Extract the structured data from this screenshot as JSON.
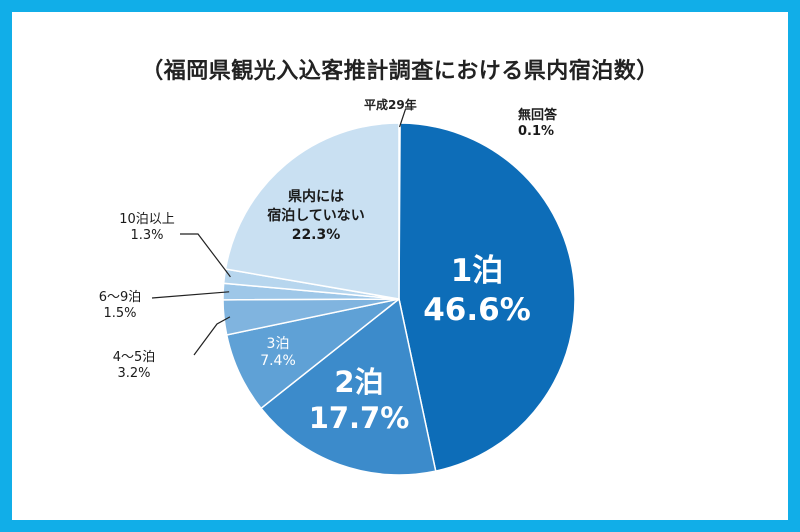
{
  "title": "（福岡県観光入込客推計調査における県内宿泊数）",
  "subtitle": "平成29年",
  "colors": {
    "frame": "#11aee8",
    "slice_1": "#0d6db8",
    "slice_2": "#3c8bcb",
    "slice_3": "#5fa1d6",
    "slice_4": "#80b4df",
    "slice_5": "#9ec7e8",
    "slice_6": "#b7d6ee",
    "slice_none": "#c9e0f2",
    "slice_noans": "#6fa8da"
  },
  "chart_data": {
    "type": "pie",
    "title": "（福岡県観光入込客推計調査における県内宿泊数）",
    "subtitle": "平成29年",
    "start": "12 o'clock",
    "direction": "clockwise",
    "slices": [
      {
        "label": "無回答",
        "value": 0.1,
        "text": "0.1%"
      },
      {
        "label": "1泊",
        "value": 46.6,
        "text": "46.6%"
      },
      {
        "label": "2泊",
        "value": 17.7,
        "text": "17.7%"
      },
      {
        "label": "3泊",
        "value": 7.4,
        "text": "7.4%"
      },
      {
        "label": "4〜5泊",
        "value": 3.2,
        "text": "3.2%"
      },
      {
        "label": "6〜9泊",
        "value": 1.5,
        "text": "1.5%"
      },
      {
        "label": "10泊以上",
        "value": 1.3,
        "text": "1.3%"
      },
      {
        "label": "県内には宿泊していない",
        "label_line1": "県内には",
        "label_line2": "宿泊していない",
        "value": 22.3,
        "text": "22.3%"
      }
    ]
  }
}
